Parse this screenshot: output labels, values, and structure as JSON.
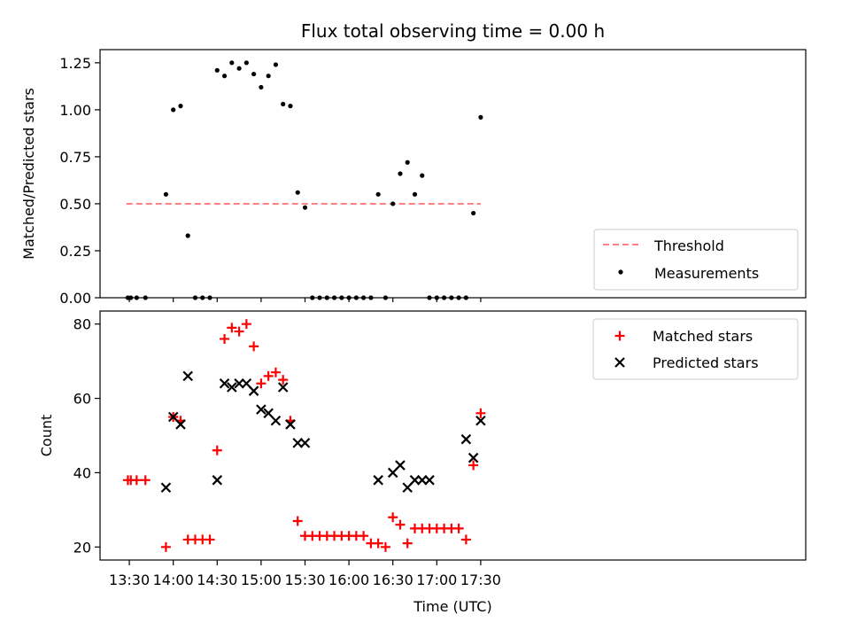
{
  "chart_data": [
    {
      "type": "scatter",
      "title": "Flux total observing time = 0.00 h",
      "xlabel": "",
      "ylabel": "Matched/Predicted stars",
      "xlim": [
        790,
        1272
      ],
      "ylim": [
        0,
        1.32
      ],
      "yticks": [
        0.0,
        0.25,
        0.5,
        0.75,
        1.0,
        1.25
      ],
      "ytick_labels": [
        "0.00",
        "0.25",
        "0.50",
        "0.75",
        "1.00",
        "1.25"
      ],
      "legend_position": "lower-right",
      "threshold": {
        "name": "Threshold",
        "value": 0.5,
        "x_range": [
          808,
          1050
        ],
        "color": "#ff8080",
        "style": "dashed"
      },
      "series": [
        {
          "name": "Measurements",
          "marker": "dot",
          "color": "#000000",
          "x": [
            809,
            811,
            815,
            821,
            835,
            840,
            845,
            850,
            855,
            860,
            865,
            870,
            875,
            880,
            885,
            890,
            895,
            900,
            905,
            910,
            915,
            920,
            925,
            930,
            935,
            940,
            945,
            950,
            955,
            960,
            965,
            970,
            975,
            980,
            985,
            990,
            995,
            1000,
            1005,
            1010,
            1015,
            1020,
            1025,
            1030,
            1035,
            1040,
            1045,
            1050
          ],
          "values": [
            0,
            0,
            0,
            0,
            0.55,
            1.0,
            1.02,
            0.33,
            0,
            0,
            0,
            1.21,
            1.18,
            1.25,
            1.22,
            1.25,
            1.19,
            1.12,
            1.18,
            1.24,
            1.03,
            1.02,
            0.56,
            0.48,
            0,
            0,
            0,
            0,
            0,
            0,
            0,
            0,
            0,
            0.55,
            0,
            0.5,
            0.66,
            0.72,
            0.55,
            0.65,
            0,
            0,
            0,
            0,
            0,
            0,
            0.45,
            0.96
          ]
        }
      ]
    },
    {
      "type": "scatter",
      "title": "",
      "xlabel": "Time (UTC)",
      "ylabel": "Count",
      "xlim": [
        790,
        1272
      ],
      "ylim": [
        16.5,
        83.5
      ],
      "yticks": [
        20,
        40,
        60,
        80
      ],
      "ytick_labels": [
        "20",
        "40",
        "60",
        "80"
      ],
      "xticks": [
        810,
        840,
        870,
        900,
        930,
        960,
        990,
        1020,
        1050
      ],
      "xtick_labels": [
        "13:30",
        "14:00",
        "14:30",
        "15:00",
        "15:30",
        "16:00",
        "16:30",
        "17:00",
        "17:30"
      ],
      "legend_position": "upper-right",
      "series": [
        {
          "name": "Matched stars",
          "marker": "plus",
          "color": "#ff0000",
          "x": [
            809,
            811,
            815,
            821,
            835,
            840,
            845,
            850,
            855,
            860,
            865,
            870,
            875,
            880,
            885,
            890,
            895,
            900,
            905,
            910,
            915,
            920,
            925,
            930,
            935,
            940,
            945,
            950,
            955,
            960,
            965,
            970,
            975,
            980,
            985,
            990,
            995,
            1000,
            1005,
            1010,
            1015,
            1020,
            1025,
            1030,
            1035,
            1040,
            1045,
            1050
          ],
          "values": [
            38,
            38,
            38,
            38,
            20,
            55,
            54,
            22,
            22,
            22,
            22,
            46,
            76,
            79,
            78,
            80,
            74,
            64,
            66,
            67,
            65,
            54,
            27,
            23,
            23,
            23,
            23,
            23,
            23,
            23,
            23,
            23,
            21,
            21,
            20,
            28,
            26,
            21,
            25,
            25,
            25,
            25,
            25,
            25,
            25,
            22,
            42,
            56
          ]
        },
        {
          "name": "Predicted stars",
          "marker": "x",
          "color": "#000000",
          "x": [
            835,
            840,
            845,
            850,
            870,
            875,
            880,
            885,
            890,
            895,
            900,
            905,
            910,
            915,
            920,
            925,
            930,
            980,
            990,
            995,
            1000,
            1005,
            1010,
            1015,
            1040,
            1045,
            1050
          ],
          "values": [
            36,
            55,
            53,
            66,
            38,
            64,
            63,
            64,
            64,
            62,
            57,
            56,
            54,
            63,
            53,
            48,
            48,
            38,
            40,
            42,
            36,
            38,
            38,
            38,
            49,
            44,
            54
          ]
        }
      ]
    }
  ]
}
